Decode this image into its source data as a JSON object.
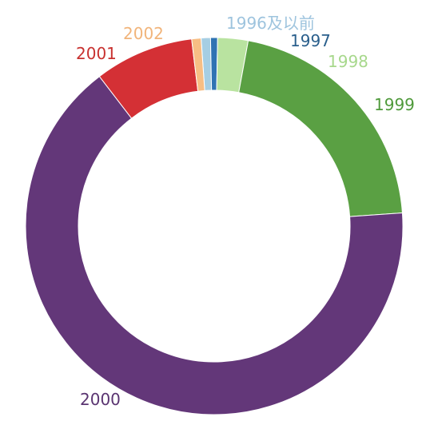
{
  "chart_data": {
    "type": "pie",
    "donut": true,
    "title": "",
    "slices": [
      {
        "label": "1996及以前",
        "value": 0.8,
        "color": "#a6cee3"
      },
      {
        "label": "1997",
        "value": 0.6,
        "color": "#2f73b3"
      },
      {
        "label": "1998",
        "value": 2.6,
        "color": "#b9e3a0"
      },
      {
        "label": "1999",
        "value": 21.0,
        "color": "#5aa043"
      },
      {
        "label": "2000",
        "value": 65.7,
        "color": "#633779"
      },
      {
        "label": "2001",
        "value": 8.5,
        "color": "#d43035"
      },
      {
        "label": "2002",
        "value": 0.8,
        "color": "#f7be84"
      }
    ],
    "label_colors": {
      "1996及以前": "#9ec4de",
      "1997": "#2a5f8c",
      "1998": "#a7d88c",
      "1999": "#4f9a3b",
      "2000": "#5a3471",
      "2001": "#c8312f",
      "2002": "#f1b47a"
    },
    "legend": "none",
    "start_angle_deg": -4
  }
}
